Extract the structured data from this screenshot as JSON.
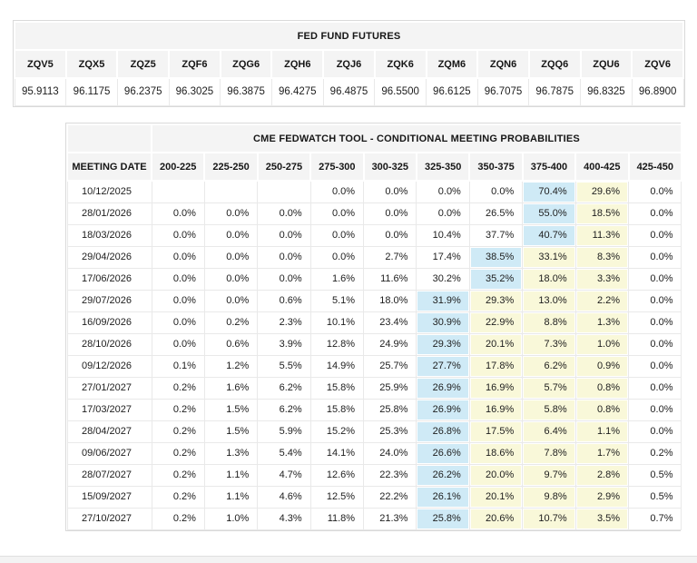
{
  "colors": {
    "highlight_blue": "#cfeaf6",
    "highlight_yellow": "#f9f8d9",
    "header_bg": "#f4f4f4"
  },
  "futures_table": {
    "title": "FED FUND FUTURES",
    "symbols": [
      "ZQV5",
      "ZQX5",
      "ZQZ5",
      "ZQF6",
      "ZQG6",
      "ZQH6",
      "ZQJ6",
      "ZQK6",
      "ZQM6",
      "ZQN6",
      "ZQQ6",
      "ZQU6",
      "ZQV6"
    ],
    "prices": [
      "95.9113",
      "96.1175",
      "96.2375",
      "96.3025",
      "96.3875",
      "96.4275",
      "96.4875",
      "96.5500",
      "96.6125",
      "96.7075",
      "96.7875",
      "96.8325",
      "96.8900"
    ]
  },
  "fedwatch_table": {
    "title": "CME FEDWATCH TOOL - CONDITIONAL MEETING PROBABILITIES",
    "date_header": "MEETING DATE",
    "range_headers": [
      "200-225",
      "225-250",
      "250-275",
      "275-300",
      "300-325",
      "325-350",
      "350-375",
      "375-400",
      "400-425",
      "425-450"
    ],
    "rows": [
      {
        "date": "10/12/2025",
        "values": [
          "",
          "",
          "",
          "0.0%",
          "0.0%",
          "0.0%",
          "0.0%",
          "70.4%",
          "29.6%",
          "0.0%"
        ],
        "styles": [
          "",
          "",
          "",
          "",
          "",
          "",
          "",
          "blue",
          "yellow",
          ""
        ]
      },
      {
        "date": "28/01/2026",
        "values": [
          "0.0%",
          "0.0%",
          "0.0%",
          "0.0%",
          "0.0%",
          "0.0%",
          "26.5%",
          "55.0%",
          "18.5%",
          "0.0%"
        ],
        "styles": [
          "",
          "",
          "",
          "",
          "",
          "",
          "",
          "blue",
          "yellow",
          ""
        ]
      },
      {
        "date": "18/03/2026",
        "values": [
          "0.0%",
          "0.0%",
          "0.0%",
          "0.0%",
          "0.0%",
          "10.4%",
          "37.7%",
          "40.7%",
          "11.3%",
          "0.0%"
        ],
        "styles": [
          "",
          "",
          "",
          "",
          "",
          "",
          "",
          "blue",
          "yellow",
          ""
        ]
      },
      {
        "date": "29/04/2026",
        "values": [
          "0.0%",
          "0.0%",
          "0.0%",
          "0.0%",
          "2.7%",
          "17.4%",
          "38.5%",
          "33.1%",
          "8.3%",
          "0.0%"
        ],
        "styles": [
          "",
          "",
          "",
          "",
          "",
          "",
          "blue",
          "yellow",
          "yellow",
          ""
        ]
      },
      {
        "date": "17/06/2026",
        "values": [
          "0.0%",
          "0.0%",
          "0.0%",
          "1.6%",
          "11.6%",
          "30.2%",
          "35.2%",
          "18.0%",
          "3.3%",
          "0.0%"
        ],
        "styles": [
          "",
          "",
          "",
          "",
          "",
          "",
          "blue",
          "yellow",
          "yellow",
          ""
        ]
      },
      {
        "date": "29/07/2026",
        "values": [
          "0.0%",
          "0.0%",
          "0.6%",
          "5.1%",
          "18.0%",
          "31.9%",
          "29.3%",
          "13.0%",
          "2.2%",
          "0.0%"
        ],
        "styles": [
          "",
          "",
          "",
          "",
          "",
          "blue",
          "yellow",
          "yellow",
          "yellow",
          ""
        ]
      },
      {
        "date": "16/09/2026",
        "values": [
          "0.0%",
          "0.2%",
          "2.3%",
          "10.1%",
          "23.4%",
          "30.9%",
          "22.9%",
          "8.8%",
          "1.3%",
          "0.0%"
        ],
        "styles": [
          "",
          "",
          "",
          "",
          "",
          "blue",
          "yellow",
          "yellow",
          "yellow",
          ""
        ]
      },
      {
        "date": "28/10/2026",
        "values": [
          "0.0%",
          "0.6%",
          "3.9%",
          "12.8%",
          "24.9%",
          "29.3%",
          "20.1%",
          "7.3%",
          "1.0%",
          "0.0%"
        ],
        "styles": [
          "",
          "",
          "",
          "",
          "",
          "blue",
          "yellow",
          "yellow",
          "yellow",
          ""
        ]
      },
      {
        "date": "09/12/2026",
        "values": [
          "0.1%",
          "1.2%",
          "5.5%",
          "14.9%",
          "25.7%",
          "27.7%",
          "17.8%",
          "6.2%",
          "0.9%",
          "0.0%"
        ],
        "styles": [
          "",
          "",
          "",
          "",
          "",
          "blue",
          "yellow",
          "yellow",
          "yellow",
          ""
        ]
      },
      {
        "date": "27/01/2027",
        "values": [
          "0.2%",
          "1.6%",
          "6.2%",
          "15.8%",
          "25.9%",
          "26.9%",
          "16.9%",
          "5.7%",
          "0.8%",
          "0.0%"
        ],
        "styles": [
          "",
          "",
          "",
          "",
          "",
          "blue",
          "yellow",
          "yellow",
          "yellow",
          ""
        ]
      },
      {
        "date": "17/03/2027",
        "values": [
          "0.2%",
          "1.5%",
          "6.2%",
          "15.8%",
          "25.8%",
          "26.9%",
          "16.9%",
          "5.8%",
          "0.8%",
          "0.0%"
        ],
        "styles": [
          "",
          "",
          "",
          "",
          "",
          "blue",
          "yellow",
          "yellow",
          "yellow",
          ""
        ]
      },
      {
        "date": "28/04/2027",
        "values": [
          "0.2%",
          "1.5%",
          "5.9%",
          "15.2%",
          "25.3%",
          "26.8%",
          "17.5%",
          "6.4%",
          "1.1%",
          "0.0%"
        ],
        "styles": [
          "",
          "",
          "",
          "",
          "",
          "blue",
          "yellow",
          "yellow",
          "yellow",
          ""
        ]
      },
      {
        "date": "09/06/2027",
        "values": [
          "0.2%",
          "1.3%",
          "5.4%",
          "14.1%",
          "24.0%",
          "26.6%",
          "18.6%",
          "7.8%",
          "1.7%",
          "0.2%"
        ],
        "styles": [
          "",
          "",
          "",
          "",
          "",
          "blue",
          "yellow",
          "yellow",
          "yellow",
          ""
        ]
      },
      {
        "date": "28/07/2027",
        "values": [
          "0.2%",
          "1.1%",
          "4.7%",
          "12.6%",
          "22.3%",
          "26.2%",
          "20.0%",
          "9.7%",
          "2.8%",
          "0.5%"
        ],
        "styles": [
          "",
          "",
          "",
          "",
          "",
          "blue",
          "yellow",
          "yellow",
          "yellow",
          ""
        ]
      },
      {
        "date": "15/09/2027",
        "values": [
          "0.2%",
          "1.1%",
          "4.6%",
          "12.5%",
          "22.2%",
          "26.1%",
          "20.1%",
          "9.8%",
          "2.9%",
          "0.5%"
        ],
        "styles": [
          "",
          "",
          "",
          "",
          "",
          "blue",
          "yellow",
          "yellow",
          "yellow",
          ""
        ]
      },
      {
        "date": "27/10/2027",
        "values": [
          "0.2%",
          "1.0%",
          "4.3%",
          "11.8%",
          "21.3%",
          "25.8%",
          "20.6%",
          "10.7%",
          "3.5%",
          "0.7%"
        ],
        "styles": [
          "",
          "",
          "",
          "",
          "",
          "blue",
          "yellow",
          "yellow",
          "yellow",
          ""
        ]
      }
    ]
  }
}
